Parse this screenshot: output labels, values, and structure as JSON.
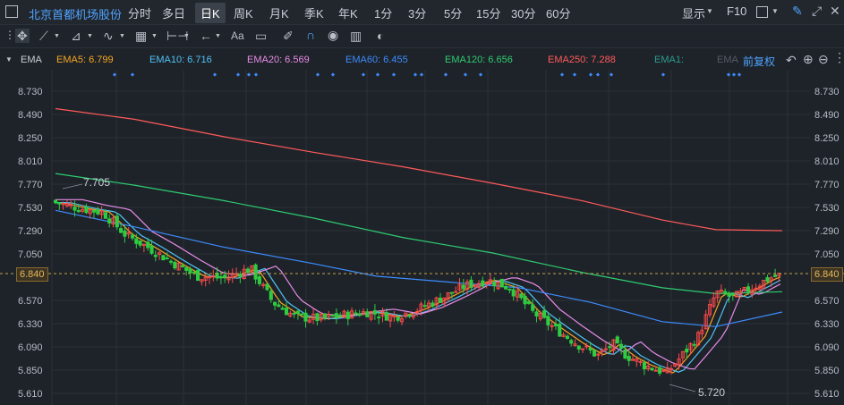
{
  "header": {
    "stock_name": "北京首都机场股份",
    "periods": [
      "分时",
      "多日",
      "日K",
      "周K",
      "月K",
      "季K",
      "年K",
      "1分",
      "3分",
      "5分",
      "15分",
      "30分",
      "60分"
    ],
    "active_period": "日K",
    "display_label": "显示",
    "f10_label": "F10"
  },
  "toolbar": {
    "text_tool": "Aa"
  },
  "indicator": {
    "name": "EMA",
    "values": [
      {
        "label": "EMA5: 6.799",
        "color": "#f5a623"
      },
      {
        "label": "EMA10: 6.716",
        "color": "#4fc3f7"
      },
      {
        "label": "EMA20: 6.569",
        "color": "#e88ce8"
      },
      {
        "label": "EMA60: 6.455",
        "color": "#3d8bfd"
      },
      {
        "label": "EMA120: 6.656",
        "color": "#2ecc71"
      },
      {
        "label": "EMA250: 7.288",
        "color": "#ff5a5a"
      },
      {
        "label": "EMA1:",
        "color": "#2a9d8f"
      },
      {
        "label": "EMA",
        "color": "#555b63"
      }
    ],
    "adjust_label": "前复权"
  },
  "chart_data": {
    "type": "candlestick",
    "y_ticks": [
      "8.730",
      "8.490",
      "8.250",
      "8.010",
      "7.770",
      "7.530",
      "7.290",
      "7.050",
      "6.840",
      "6.570",
      "6.330",
      "6.090",
      "5.850",
      "5.610"
    ],
    "current_price": "6.840",
    "high_label": "7.705",
    "low_label": "5.720",
    "colors": {
      "up": "#ff4a4a",
      "down": "#2ecc40",
      "ema5": "#f5a623",
      "ema10": "#4fc3f7",
      "ema20": "#e88ce8",
      "ema60": "#3d8bfd",
      "ema120": "#2ecc71",
      "ema250": "#ff5a5a"
    }
  }
}
